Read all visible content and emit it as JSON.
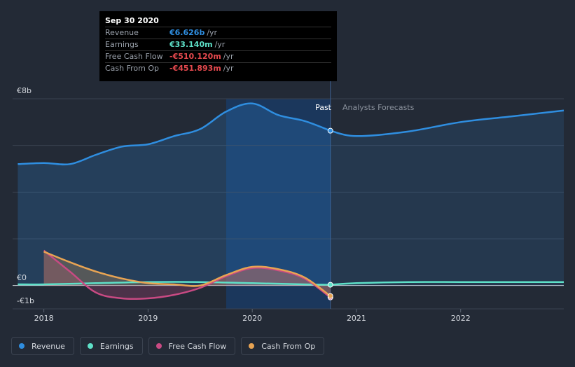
{
  "chart_data": {
    "type": "line",
    "y_axis": {
      "top_label": "€8b",
      "zero_label": "€0",
      "bottom_label": "-€1b",
      "ylim": [
        -1,
        8
      ]
    },
    "x_axis": {
      "ticks": [
        "2018",
        "2019",
        "2020",
        "2021",
        "2022"
      ],
      "xlim": [
        2017.7,
        2022.99
      ]
    },
    "past_label": "Past",
    "forecast_label": "Analysts Forecasts",
    "divider_x": 2020.75,
    "highlight_start_x": 2019.75,
    "series": [
      {
        "name": "Revenue",
        "color": "#2f8ee0",
        "fill": true,
        "points": [
          [
            2017.75,
            5.2
          ],
          [
            2018.0,
            5.25
          ],
          [
            2018.25,
            5.2
          ],
          [
            2018.5,
            5.6
          ],
          [
            2018.75,
            5.95
          ],
          [
            2019.0,
            6.05
          ],
          [
            2019.25,
            6.4
          ],
          [
            2019.5,
            6.7
          ],
          [
            2019.75,
            7.45
          ],
          [
            2020.0,
            7.8
          ],
          [
            2020.25,
            7.3
          ],
          [
            2020.5,
            7.05
          ],
          [
            2020.75,
            6.63
          ]
        ],
        "forecast": [
          [
            2020.75,
            6.63
          ],
          [
            2021.0,
            6.4
          ],
          [
            2021.5,
            6.6
          ],
          [
            2022.0,
            7.0
          ],
          [
            2022.5,
            7.25
          ],
          [
            2022.99,
            7.5
          ]
        ]
      },
      {
        "name": "Earnings",
        "color": "#5ee0c8",
        "fill": false,
        "points": [
          [
            2017.75,
            0.05
          ],
          [
            2018.0,
            0.05
          ],
          [
            2018.5,
            0.1
          ],
          [
            2019.0,
            0.15
          ],
          [
            2019.5,
            0.15
          ],
          [
            2020.0,
            0.1
          ],
          [
            2020.5,
            0.05
          ],
          [
            2020.75,
            0.033
          ]
        ],
        "forecast": [
          [
            2020.75,
            0.033
          ],
          [
            2021.0,
            0.1
          ],
          [
            2021.5,
            0.15
          ],
          [
            2022.0,
            0.15
          ],
          [
            2022.99,
            0.15
          ]
        ]
      },
      {
        "name": "Free Cash Flow",
        "color": "#c94a83",
        "fill": true,
        "points": [
          [
            2018.0,
            1.5
          ],
          [
            2018.25,
            0.6
          ],
          [
            2018.5,
            -0.3
          ],
          [
            2018.75,
            -0.55
          ],
          [
            2019.0,
            -0.55
          ],
          [
            2019.25,
            -0.4
          ],
          [
            2019.5,
            -0.1
          ],
          [
            2019.75,
            0.4
          ],
          [
            2020.0,
            0.75
          ],
          [
            2020.25,
            0.65
          ],
          [
            2020.5,
            0.3
          ],
          [
            2020.75,
            -0.51
          ]
        ],
        "forecast": []
      },
      {
        "name": "Cash From Op",
        "color": "#e8a453",
        "fill": true,
        "points": [
          [
            2018.0,
            1.45
          ],
          [
            2018.25,
            1.0
          ],
          [
            2018.5,
            0.6
          ],
          [
            2018.75,
            0.3
          ],
          [
            2019.0,
            0.1
          ],
          [
            2019.25,
            0.05
          ],
          [
            2019.5,
            0.0
          ],
          [
            2019.75,
            0.45
          ],
          [
            2020.0,
            0.8
          ],
          [
            2020.25,
            0.7
          ],
          [
            2020.5,
            0.35
          ],
          [
            2020.75,
            -0.45
          ]
        ],
        "forecast": []
      }
    ]
  },
  "tooltip": {
    "date": "Sep 30 2020",
    "rows": [
      {
        "label": "Revenue",
        "value": "€6.626b",
        "unit": "/yr",
        "color": "#2f8ee0"
      },
      {
        "label": "Earnings",
        "value": "€33.140m",
        "unit": "/yr",
        "color": "#5ee0c8"
      },
      {
        "label": "Free Cash Flow",
        "value": "-€510.120m",
        "unit": "/yr",
        "color": "#e5494e"
      },
      {
        "label": "Cash From Op",
        "value": "-€451.893m",
        "unit": "/yr",
        "color": "#e5494e"
      }
    ]
  },
  "legend": [
    {
      "label": "Revenue",
      "color": "#2f8ee0"
    },
    {
      "label": "Earnings",
      "color": "#5ee0c8"
    },
    {
      "label": "Free Cash Flow",
      "color": "#c94a83"
    },
    {
      "label": "Cash From Op",
      "color": "#e8a453"
    }
  ]
}
